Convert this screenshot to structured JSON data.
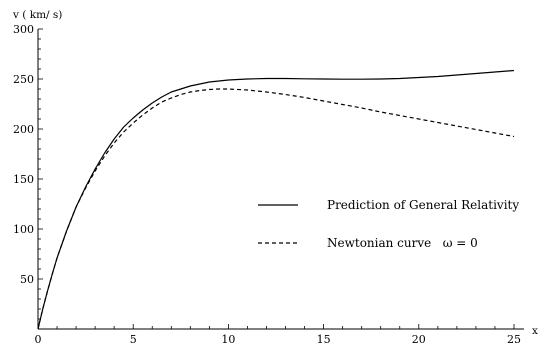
{
  "chart_data": {
    "type": "line",
    "ylabel": "v ( km/ s)",
    "xlabel": "x",
    "xlim": [
      0,
      25
    ],
    "ylim": [
      0,
      300
    ],
    "x_ticks": [
      0,
      5,
      10,
      15,
      20,
      25
    ],
    "y_ticks": [
      50,
      100,
      150,
      200,
      250,
      300
    ],
    "grid": false,
    "legend_placement": "center-right",
    "series": [
      {
        "name": "Prediction of General Relativity",
        "style": "solid",
        "color": "#000000",
        "x": [
          0,
          0.1,
          0.25,
          0.5,
          0.75,
          1,
          1.5,
          2,
          2.5,
          3,
          3.5,
          4,
          4.5,
          5,
          5.5,
          6,
          6.5,
          7,
          7.5,
          8,
          8.5,
          9,
          9.5,
          10,
          11,
          12,
          13,
          14,
          15,
          16,
          17,
          18,
          19,
          20,
          21,
          22,
          23,
          24,
          25
        ],
        "y": [
          0,
          8,
          20,
          38,
          55,
          71,
          98,
          122,
          142,
          160,
          176,
          190,
          202,
          211,
          219,
          226,
          232,
          237,
          240,
          243,
          245,
          247,
          248,
          249,
          250,
          250.5,
          250.5,
          250.2,
          250,
          249.8,
          249.8,
          250,
          250.5,
          251.5,
          252.5,
          254,
          255.5,
          257,
          258.5
        ]
      },
      {
        "name": "Newtonian curve   ω = 0",
        "style": "dashed",
        "color": "#000000",
        "x": [
          0,
          0.1,
          0.25,
          0.5,
          0.75,
          1,
          1.5,
          2,
          2.5,
          3,
          3.5,
          4,
          4.5,
          5,
          5.5,
          6,
          6.5,
          7,
          7.5,
          8,
          8.5,
          9,
          9.5,
          10,
          11,
          12,
          13,
          14,
          15,
          16,
          17,
          18,
          19,
          20,
          21,
          22,
          23,
          24,
          25
        ],
        "y": [
          0,
          8,
          20,
          38,
          55,
          71,
          98,
          122,
          141,
          158,
          173,
          186,
          197,
          206,
          214,
          221,
          227,
          231,
          234.5,
          237,
          238.5,
          239.5,
          240,
          240,
          239,
          237,
          234.5,
          231.5,
          228,
          224.5,
          221,
          217,
          213.5,
          210,
          206.5,
          203,
          199.5,
          196,
          192.5
        ]
      }
    ]
  }
}
